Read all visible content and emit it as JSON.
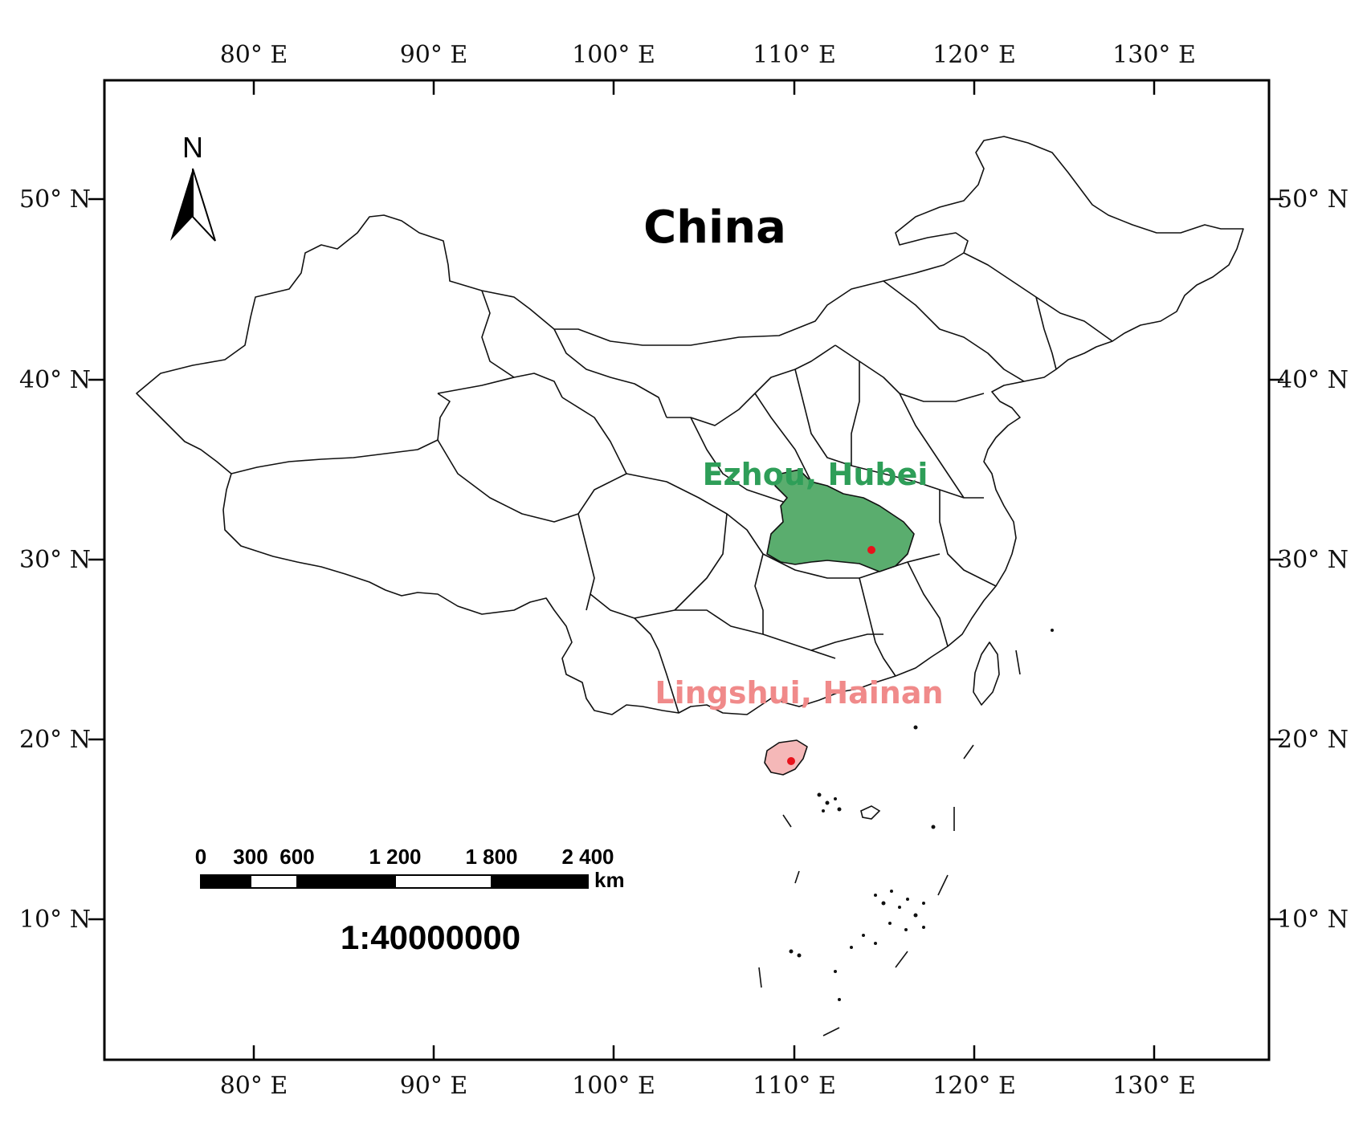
{
  "map": {
    "title": "China",
    "scale_ratio": "1:40000000",
    "north_label": "N",
    "lon_ticks": [
      "80° E",
      "90° E",
      "100° E",
      "110° E",
      "120° E",
      "130° E"
    ],
    "lat_ticks": [
      "50° N",
      "40° N",
      "30° N",
      "20° N",
      "10° N"
    ],
    "scale_bar": {
      "labels": [
        "0",
        "300",
        "600",
        "1 200",
        "1 800",
        "2 400"
      ],
      "unit": "km"
    },
    "sites": [
      {
        "label": "Ezhou, Hubei",
        "color": "#2e9e58"
      },
      {
        "label": "Lingshui, Hainan",
        "color": "#f08a8a"
      }
    ],
    "highlight_colors": {
      "hubei": "#5aad6e",
      "hainan": "#f5b8b8",
      "marker": "#e8121b"
    }
  }
}
